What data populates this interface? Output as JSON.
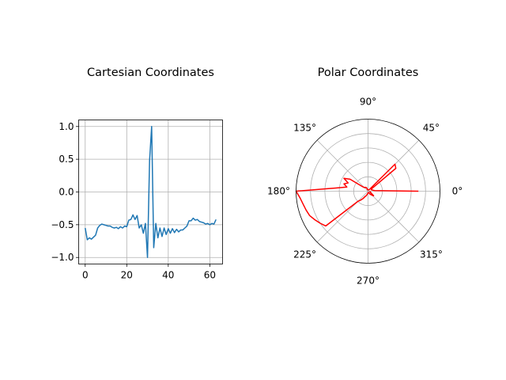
{
  "colors": {
    "cartesian_line": "#1f77b4",
    "polar_line": "#ff0000",
    "grid": "#b0b0b0",
    "axes": "#000000"
  },
  "chart_data": [
    {
      "type": "line",
      "title": "Cartesian Coordinates",
      "xlabel": "",
      "ylabel": "",
      "xlim": [
        -3.15,
        66.15
      ],
      "ylim": [
        -1.1,
        1.1
      ],
      "xticks": [
        0,
        20,
        40,
        60
      ],
      "yticks": [
        -1.0,
        -0.5,
        0.0,
        0.5,
        1.0
      ],
      "xtick_labels": [
        "0",
        "20",
        "40",
        "60"
      ],
      "ytick_labels": [
        "−1.0",
        "−0.5",
        "0.0",
        "0.5",
        "1.0"
      ],
      "grid": true,
      "x": [
        0,
        1,
        2,
        3,
        4,
        5,
        6,
        7,
        8,
        9,
        10,
        11,
        12,
        13,
        14,
        15,
        16,
        17,
        18,
        19,
        20,
        21,
        22,
        23,
        24,
        25,
        26,
        27,
        28,
        29,
        30,
        31,
        32,
        33,
        34,
        35,
        36,
        37,
        38,
        39,
        40,
        41,
        42,
        43,
        44,
        45,
        46,
        47,
        48,
        49,
        50,
        51,
        52,
        53,
        54,
        55,
        56,
        57,
        58,
        59,
        60,
        61,
        62,
        63
      ],
      "y": [
        -0.55,
        -0.73,
        -0.7,
        -0.72,
        -0.69,
        -0.66,
        -0.55,
        -0.51,
        -0.49,
        -0.5,
        -0.51,
        -0.52,
        -0.52,
        -0.54,
        -0.55,
        -0.54,
        -0.56,
        -0.53,
        -0.55,
        -0.52,
        -0.53,
        -0.43,
        -0.42,
        -0.35,
        -0.42,
        -0.36,
        -0.55,
        -0.5,
        -0.63,
        -0.48,
        -1.0,
        0.48,
        1.0,
        -0.85,
        -0.48,
        -0.7,
        -0.55,
        -0.68,
        -0.55,
        -0.65,
        -0.56,
        -0.63,
        -0.56,
        -0.62,
        -0.57,
        -0.61,
        -0.58,
        -0.58,
        -0.55,
        -0.52,
        -0.44,
        -0.44,
        -0.4,
        -0.43,
        -0.42,
        -0.45,
        -0.46,
        -0.47,
        -0.49,
        -0.48,
        -0.5,
        -0.48,
        -0.49,
        -0.42
      ]
    },
    {
      "type": "line",
      "subtype": "polar",
      "title": "Polar Coordinates",
      "theta_tick_labels": [
        "0°",
        "45°",
        "90°",
        "135°",
        "180°",
        "225°",
        "270°",
        "315°"
      ],
      "r_grid": [
        0.2,
        0.4,
        0.6,
        0.8,
        1.0
      ],
      "r_max": 1.0,
      "grid": true,
      "theta_deg": [
        0,
        5.6,
        11.3,
        16.9,
        22.5,
        28.1,
        33.8,
        39.4,
        45,
        50.6,
        56.3,
        61.9,
        67.5,
        73.1,
        78.8,
        84.4,
        90,
        95.6,
        101.3,
        106.9,
        112.5,
        118.1,
        123.8,
        129.4,
        135,
        140.6,
        146.3,
        151.9,
        157.5,
        163.1,
        168.8,
        174.4,
        180,
        185.6,
        191.3,
        196.9,
        202.5,
        208.1,
        213.8,
        219.4,
        225,
        230.6,
        236.3,
        241.9,
        247.5,
        253.1,
        258.8,
        264.4,
        270,
        275.6,
        281.3,
        286.9,
        292.5,
        298.1,
        303.8,
        309.4,
        315,
        320.6,
        326.3,
        331.9,
        337.5,
        343.1,
        348.8,
        354.4
      ],
      "r": [
        0.7,
        0.09,
        0.07,
        0.06,
        0.05,
        0.05,
        0.06,
        0.5,
        0.53,
        0.03,
        0.03,
        0.02,
        0.02,
        0.02,
        0.02,
        0.02,
        0.02,
        0.02,
        0.02,
        0.02,
        0.05,
        0.06,
        0.06,
        0.07,
        0.07,
        0.1,
        0.3,
        0.38,
        0.3,
        0.35,
        0.3,
        0.45,
        1.0,
        0.95,
        0.92,
        0.9,
        0.88,
        0.84,
        0.8,
        0.76,
        0.2,
        0.16,
        0.12,
        0.08,
        0.07,
        0.05,
        0.04,
        0.03,
        0.02,
        0.02,
        0.02,
        0.02,
        0.02,
        0.03,
        0.05,
        0.06,
        0.08,
        0.1,
        0.06,
        0.04,
        0.04,
        0.03,
        0.03,
        0.02
      ]
    }
  ]
}
